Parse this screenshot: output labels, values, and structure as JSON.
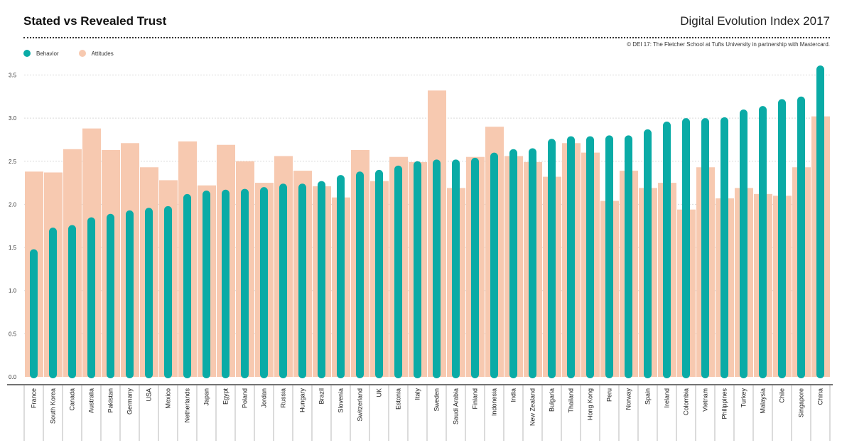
{
  "header": {
    "title": "Stated vs Revealed Trust",
    "index_title": "Digital Evolution Index 2017",
    "credit": "© DEI 17:  The Fletcher School at Tufts University in partnership with Mastercard."
  },
  "legend": {
    "behavior_label": "Behavior",
    "attitudes_label": "Attitudes"
  },
  "colors": {
    "behavior": "#0aaba6",
    "attitudes": "#f7c9b0",
    "grid": "#d9d9d9",
    "axis": "#444444"
  },
  "chart_data": {
    "type": "bar",
    "title": "Stated vs Revealed Trust",
    "ylim": [
      0,
      3.7
    ],
    "yticks": [
      "0.0",
      "0.5",
      "1.0",
      "1.5",
      "2.0",
      "2.5",
      "3.0",
      "3.5"
    ],
    "grid": true,
    "legend_position": "top-left",
    "categories": [
      "France",
      "South Korea",
      "Canada",
      "Australia",
      "Pakistan",
      "Germany",
      "USA",
      "Mexico",
      "Netherlands",
      "Japan",
      "Egypt",
      "Poland",
      "Jordan",
      "Russia",
      "Hungary",
      "Brazil",
      "Slovenia",
      "Switzerland",
      "UK",
      "Estonia",
      "Italy",
      "Sweden",
      "Saudi Arabia",
      "Finland",
      "Indonesia",
      "India",
      "New Zealand",
      "Bulgaria",
      "Thailand",
      "Hong Kong",
      "Peru",
      "Norway",
      "Spain",
      "Ireland",
      "Colombia",
      "Vietnam",
      "Philippines",
      "Turkey",
      "Malaysia",
      "Chile",
      "Singapore",
      "China"
    ],
    "series": [
      {
        "name": "Behavior",
        "values": [
          1.48,
          1.73,
          1.76,
          1.85,
          1.89,
          1.93,
          1.96,
          1.98,
          2.12,
          2.16,
          2.17,
          2.18,
          2.2,
          2.24,
          2.24,
          2.27,
          2.34,
          2.38,
          2.4,
          2.45,
          2.5,
          2.52,
          2.52,
          2.54,
          2.6,
          2.64,
          2.65,
          2.76,
          2.79,
          2.79,
          2.8,
          2.8,
          2.87,
          2.96,
          3.0,
          3.0,
          3.01,
          3.1,
          3.14,
          3.22,
          3.25,
          3.61
        ]
      },
      {
        "name": "Attitudes",
        "values": [
          2.38,
          2.37,
          2.64,
          2.88,
          2.63,
          2.71,
          2.43,
          2.28,
          2.73,
          2.22,
          2.69,
          2.5,
          2.25,
          2.56,
          2.39,
          2.21,
          2.08,
          2.63,
          2.27,
          2.55,
          2.49,
          3.32,
          2.19,
          2.55,
          2.9,
          2.56,
          2.49,
          2.32,
          2.71,
          2.6,
          2.04,
          2.39,
          2.19,
          2.25,
          1.94,
          2.43,
          2.07,
          2.19,
          2.12,
          2.1,
          2.43,
          3.02
        ]
      }
    ]
  }
}
